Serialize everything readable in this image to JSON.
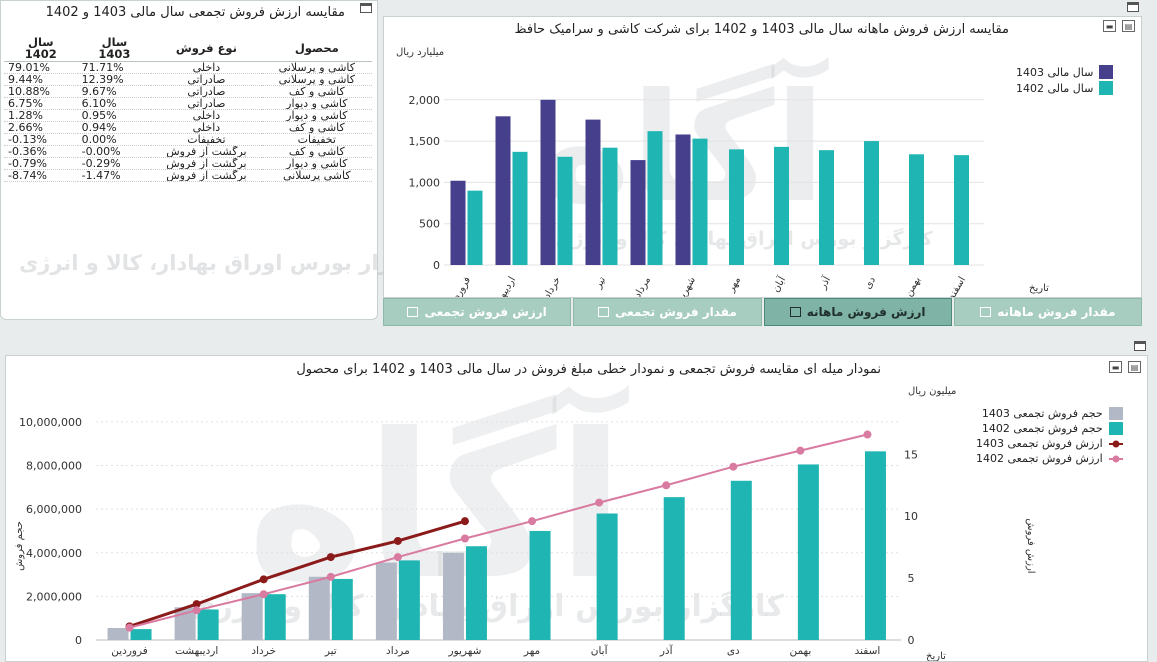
{
  "table_panel": {
    "title": "مقایسه ارزش فروش تجمعی سال مالی 1403 و 1402",
    "headers": {
      "product": "محصول",
      "sale_type": "نوع فروش",
      "y1403": "سال\n1403",
      "y1402": "سال\n1402"
    },
    "rows": [
      {
        "product": "کاشی و پرسلانی",
        "sale_type": "داخلی",
        "v1403": "71.71%",
        "v1402": "79.01%"
      },
      {
        "product": "کاشی و پرسلانی",
        "sale_type": "صادراتی",
        "v1403": "12.39%",
        "v1402": "9.44%"
      },
      {
        "product": "کاشی و کف",
        "sale_type": "صادراتی",
        "v1403": "9.67%",
        "v1402": "10.88%"
      },
      {
        "product": "کاشی و دیوار",
        "sale_type": "صادراتی",
        "v1403": "6.10%",
        "v1402": "6.75%"
      },
      {
        "product": "کاشی و دیوار",
        "sale_type": "داخلی",
        "v1403": "0.95%",
        "v1402": "1.28%"
      },
      {
        "product": "کاشی و کف",
        "sale_type": "داخلی",
        "v1403": "0.94%",
        "v1402": "2.66%"
      },
      {
        "product": "تخفیفات",
        "sale_type": "تخفیفات",
        "v1403": "0.00%",
        "v1402": "-0.13%"
      },
      {
        "product": "کاشی و کف",
        "sale_type": "برگشت از فروش",
        "v1403": "-0.00%",
        "v1402": "-0.36%"
      },
      {
        "product": "کاشی و دیوار",
        "sale_type": "برگشت از فروش",
        "v1403": "-0.29%",
        "v1402": "-0.79%"
      },
      {
        "product": "کاشی پرسلانی",
        "sale_type": "برگشت از فروش",
        "v1403": "-1.47%",
        "v1402": "-8.74%"
      }
    ]
  },
  "top_chart": {
    "title": "مقایسه ارزش فروش ماهانه سال مالی 1403 و 1402 برای شرکت کاشی و سرامیک حافظ",
    "legend": {
      "s1403": "سال مالی 1403",
      "s1402": "سال مالی 1402"
    },
    "colors": {
      "s1403": "#463f8c",
      "s1402": "#1fb5b3"
    }
  },
  "tabs": [
    {
      "label": "مقدار فروش ماهانه",
      "icon": "bar-chart-icon",
      "active": false
    },
    {
      "label": "ارزش فروش ماهانه",
      "icon": "bar-chart-icon",
      "active": true
    },
    {
      "label": "مقدار فروش تجمعی",
      "icon": "line-chart-icon",
      "active": false
    },
    {
      "label": "ارزش فروش تجمعی",
      "icon": "line-chart-icon",
      "active": false
    }
  ],
  "bottom_chart": {
    "title": "نمودار میله ای مقایسه فروش تجمعی و نمودار خطی مبلغ فروش در سال مالی 1403 و 1402 برای محصول",
    "legend": {
      "vol1403": "حجم فروش تجمعی  1403",
      "vol1402": "حجم فروش تجمعی  1402",
      "val1403": "ارزش فروش تجمعی 1403",
      "val1402": "ارزش فروش تجمعی 1402"
    },
    "colors": {
      "vol1403": "#b3b8c6",
      "vol1402": "#1fb5b3",
      "val1403": "#8b1a1a",
      "val1402": "#d97aa0"
    }
  },
  "watermark": {
    "brand": "آگاه",
    "tagline": "کارگزار بورس اوراق بهادار، کالا و انرژی"
  },
  "chart_data": [
    {
      "type": "bar",
      "title": "مقایسه ارزش فروش ماهانه سال مالی 1403 و 1402 برای شرکت کاشی و سرامیک حافظ",
      "ylabel": "میلیارد ریال",
      "xlabel": "تاریخ",
      "ylim": [
        0,
        2300
      ],
      "yticks": [
        "0",
        "500",
        "1,000",
        "1,500",
        "2,000"
      ],
      "categories": [
        "فروردین",
        "اردیبهشت",
        "خرداد",
        "تیر",
        "مرداد",
        "شهریور",
        "مهر",
        "آبان",
        "آذر",
        "دی",
        "بهمن",
        "اسفند"
      ],
      "series": [
        {
          "name": "سال مالی 1403",
          "values": [
            1020,
            1800,
            2000,
            1760,
            1270,
            1580,
            null,
            null,
            null,
            null,
            null,
            null
          ]
        },
        {
          "name": "سال مالی 1402",
          "values": [
            900,
            1370,
            1310,
            1420,
            1620,
            1530,
            1400,
            1430,
            1390,
            1500,
            1340,
            1330
          ]
        }
      ],
      "grid": true,
      "legend": "top-right"
    },
    {
      "type": "bar",
      "title": "نمودار میله ای مقایسه فروش تجمعی و نمودار خطی مبلغ فروش در سال مالی 1403 و 1402 برای محصول",
      "ylabel": "حجم فروش",
      "y2label": "ارزش فروش",
      "y2unit": "میلیون ریال",
      "xlabel": "تاریخ",
      "ylim": [
        0,
        10500000
      ],
      "y2lim": [
        0,
        18.5
      ],
      "yticks": [
        "0",
        "2,000,000",
        "4,000,000",
        "6,000,000",
        "8,000,000",
        "10,000,000"
      ],
      "y2ticks": [
        "0",
        "5",
        "10",
        "15"
      ],
      "categories": [
        "فروردین",
        "اردیبهشت",
        "خرداد",
        "تیر",
        "مرداد",
        "شهریور",
        "مهر",
        "آبان",
        "آذر",
        "دی",
        "بهمن",
        "اسفند"
      ],
      "series": [
        {
          "name": "حجم فروش تجمعی  1403",
          "kind": "bar",
          "values": [
            550000,
            1500000,
            2150000,
            2900000,
            3550000,
            4000000,
            null,
            null,
            null,
            null,
            null,
            null
          ]
        },
        {
          "name": "حجم فروش تجمعی  1402",
          "kind": "bar",
          "values": [
            500000,
            1400000,
            2100000,
            2800000,
            3650000,
            4300000,
            5000000,
            5800000,
            6550000,
            7300000,
            8050000,
            8650000
          ]
        },
        {
          "name": "ارزش فروش تجمعی 1403",
          "kind": "line",
          "axis": "y2",
          "values": [
            1.1,
            2.9,
            4.9,
            6.7,
            8.0,
            9.6,
            null,
            null,
            null,
            null,
            null,
            null
          ]
        },
        {
          "name": "ارزش فروش تجمعی 1402",
          "kind": "line",
          "axis": "y2",
          "values": [
            1.0,
            2.4,
            3.7,
            5.1,
            6.7,
            8.2,
            9.6,
            11.1,
            12.5,
            14.0,
            15.3,
            16.6
          ]
        }
      ],
      "grid": true,
      "legend": "top-right"
    }
  ]
}
